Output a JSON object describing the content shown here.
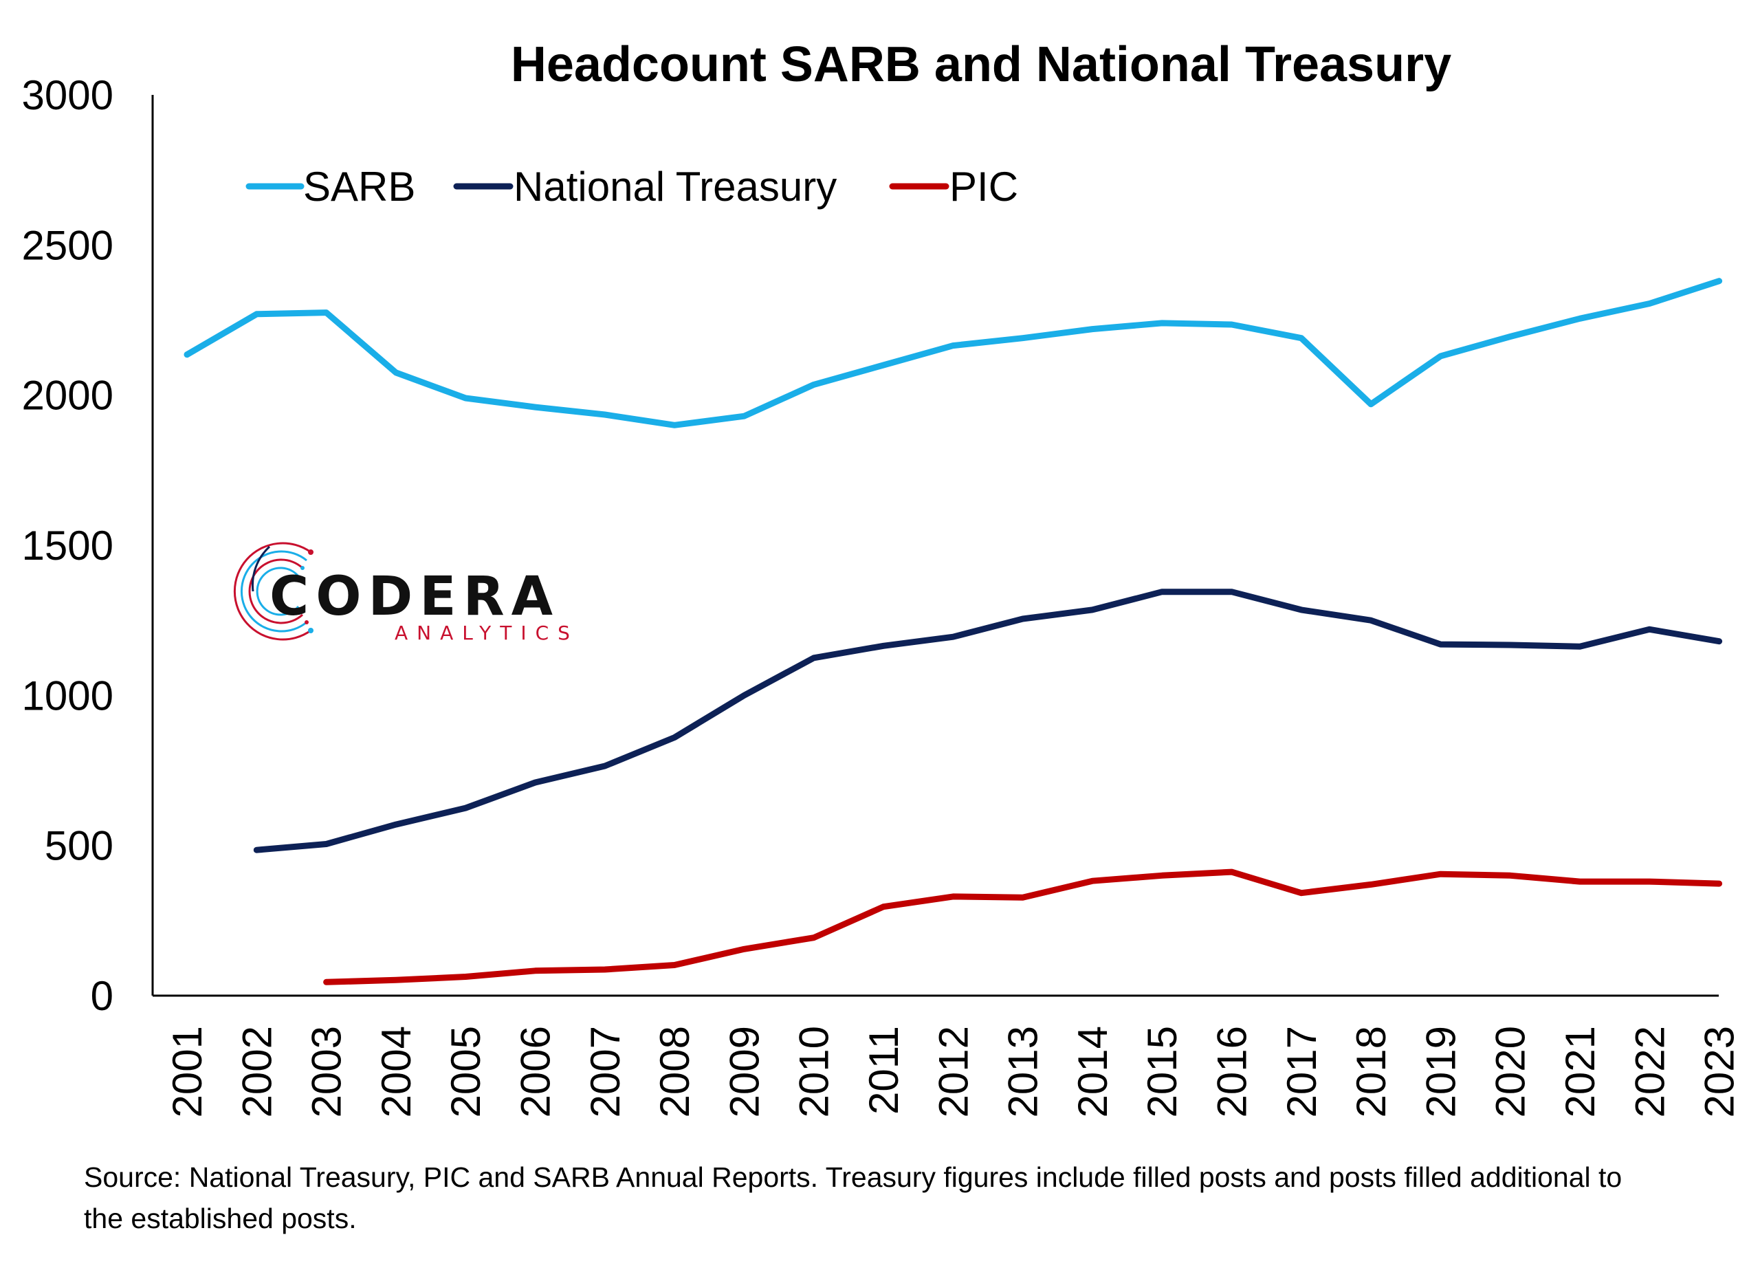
{
  "chart_data": {
    "type": "line",
    "title": "Headcount SARB and National Treasury",
    "categories": [
      "2001",
      "2002",
      "2003",
      "2004",
      "2005",
      "2006",
      "2007",
      "2008",
      "2009",
      "2010",
      "2011",
      "2012",
      "2013",
      "2014",
      "2015",
      "2016",
      "2017",
      "2018",
      "2019",
      "2020",
      "2021",
      "2022",
      "2023"
    ],
    "ylim": [
      0,
      3000
    ],
    "yticks": [
      0,
      500,
      1000,
      1500,
      2000,
      2500,
      3000
    ],
    "grid": false,
    "legend_position": "top-left",
    "series": [
      {
        "name": "SARB",
        "color": "#1AAEE8",
        "values": [
          2135,
          2270,
          2275,
          2075,
          1990,
          1960,
          1935,
          1900,
          1930,
          2035,
          2100,
          2165,
          2190,
          2220,
          2240,
          2235,
          2190,
          1970,
          2130,
          2195,
          2255,
          2305,
          2380
        ]
      },
      {
        "name": "National Treasury",
        "color": "#0D2156",
        "values": [
          null,
          485,
          505,
          570,
          625,
          710,
          765,
          860,
          1000,
          1125,
          1165,
          1195,
          1255,
          1285,
          1345,
          1345,
          1285,
          1250,
          1170,
          1168,
          1163,
          1220,
          1180
        ]
      },
      {
        "name": "PIC",
        "color": "#C00000",
        "values": [
          null,
          null,
          45,
          52,
          63,
          83,
          87,
          102,
          155,
          193,
          296,
          330,
          327,
          382,
          400,
          412,
          342,
          370,
          405,
          400,
          380,
          380,
          373
        ]
      }
    ]
  },
  "logo": {
    "name": "CODERA",
    "tagline": "ANALYTICS",
    "colors": {
      "red": "#C8102E",
      "blue": "#1AAEE8",
      "navy": "#0D2156",
      "text": "#111111"
    }
  },
  "source_note": "Source: National Treasury, PIC and SARB Annual Reports. Treasury figures include filled posts and posts filled additional to the established posts."
}
